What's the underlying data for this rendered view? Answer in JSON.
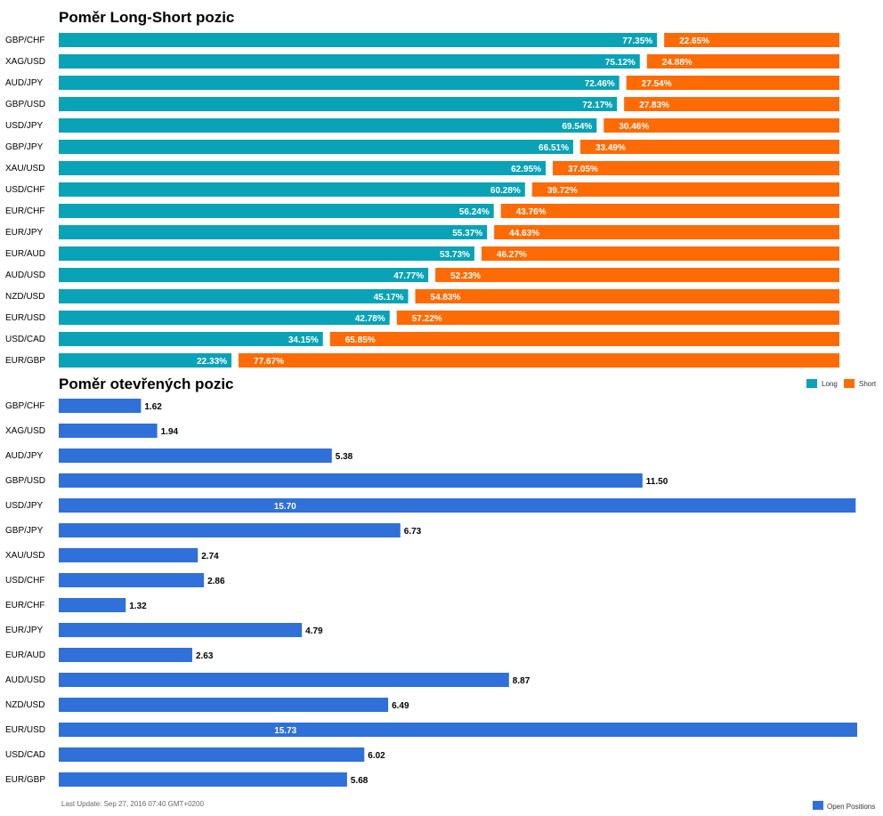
{
  "colors": {
    "long": "#0aa2b6",
    "short": "#fe6a04",
    "open": "#2f70d9"
  },
  "footer": "Last Update: Sep 27, 2016 07:40 GMT+0200",
  "chart_data": [
    {
      "type": "bar",
      "orientation": "horizontal",
      "stacked": true,
      "title": "Poměr Long-Short pozic",
      "categories": [
        "GBP/CHF",
        "XAG/USD",
        "AUD/JPY",
        "GBP/USD",
        "USD/JPY",
        "GBP/JPY",
        "XAU/USD",
        "USD/CHF",
        "EUR/CHF",
        "EUR/JPY",
        "EUR/AUD",
        "AUD/USD",
        "NZD/USD",
        "EUR/USD",
        "USD/CAD",
        "EUR/GBP"
      ],
      "series": [
        {
          "name": "Long",
          "values": [
            77.35,
            75.12,
            72.46,
            72.17,
            69.54,
            66.51,
            62.95,
            60.28,
            56.24,
            55.37,
            53.73,
            47.77,
            45.17,
            42.78,
            34.15,
            22.33
          ]
        },
        {
          "name": "Short",
          "values": [
            22.65,
            24.88,
            27.54,
            27.83,
            30.46,
            33.49,
            37.05,
            39.72,
            43.76,
            44.63,
            46.27,
            52.23,
            54.83,
            57.22,
            65.85,
            77.67
          ]
        }
      ],
      "legend_position": "top-right",
      "grid": false
    },
    {
      "type": "bar",
      "orientation": "horizontal",
      "title": "Poměr otevřených pozic",
      "categories": [
        "GBP/CHF",
        "XAG/USD",
        "AUD/JPY",
        "GBP/USD",
        "USD/JPY",
        "GBP/JPY",
        "XAU/USD",
        "USD/CHF",
        "EUR/CHF",
        "EUR/JPY",
        "EUR/AUD",
        "AUD/USD",
        "NZD/USD",
        "EUR/USD",
        "USD/CAD",
        "EUR/GBP"
      ],
      "series": [
        {
          "name": "Open Positions",
          "values": [
            1.62,
            1.94,
            5.38,
            11.5,
            15.7,
            6.73,
            2.74,
            2.86,
            1.32,
            4.79,
            2.63,
            8.87,
            6.49,
            15.73,
            6.02,
            5.68
          ]
        }
      ],
      "legend_position": "bottom-right",
      "grid": false
    }
  ]
}
